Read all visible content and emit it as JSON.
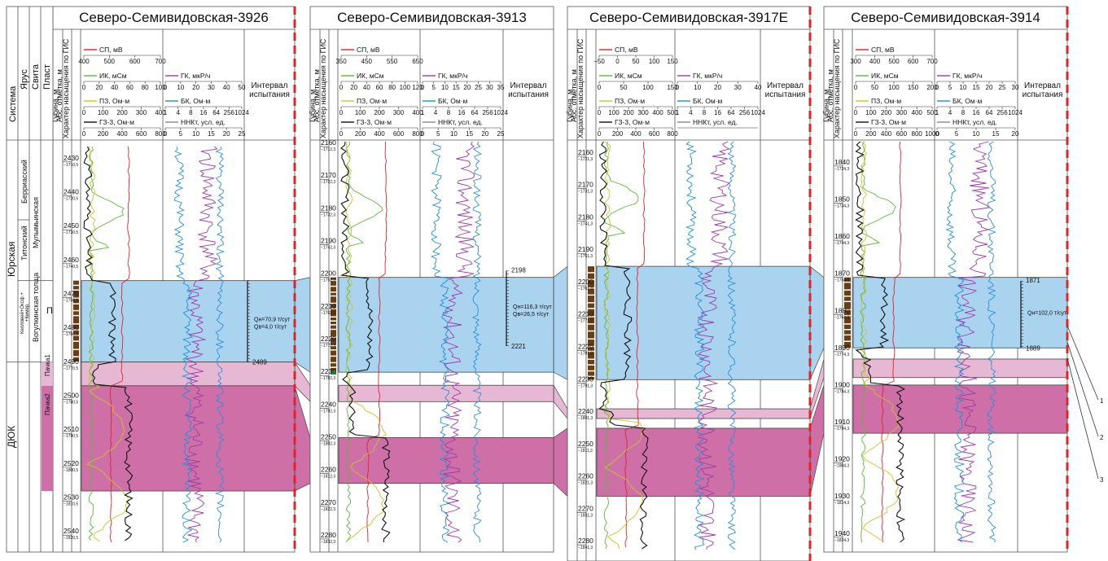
{
  "colors": {
    "sp": "#e0232b",
    "ik": "#5cb83a",
    "pz": "#c9c42a",
    "gz": "#111111",
    "gk": "#9b3ba6",
    "bk": "#1d8fd6",
    "nnkt": "#2a8fd8",
    "oil_interval": "#a9d3ef",
    "pachka1": "#e6b8d4",
    "pachka2": "#cf6fa8",
    "char_oil": "#6b3d12",
    "char_water": "#1fa64a",
    "boundary_dash": "#e0232b"
  },
  "common_headers": {
    "sistema": "Система",
    "yarus": "Ярус",
    "svita": "Свита",
    "plast": "Пласт",
    "depth_label_1": "Губина, м",
    "depth_label_2": "Абс. отметка, м",
    "char_label_1": "Характер насыщения по ГИС",
    "interval_label_1": "Интервал",
    "interval_label_2": "испытания",
    "curve_sp": "СП, мВ",
    "curve_ik": "ИК, мСм",
    "curve_pz": "ПЗ, Ом·м",
    "curve_gz": "ГЗ-3, Ом·м",
    "curve_gk": "ГК, мкР/ч",
    "curve_bk": "БК, Ом·м",
    "curve_nnkt": "ННКт, усл. ед."
  },
  "strat": {
    "sistema_upper": "Юрская",
    "sistema_lower": "ДЮК",
    "yarus_1": "Берриасский",
    "yarus_2": "Титонский",
    "yarus_3_line1": "Келловей+Оксф.+",
    "yarus_3_line2": "+Кимер.",
    "svita_1": "Мулымьинская",
    "svita_2": "Вогулкинская толща",
    "plast_p": "П",
    "pachka1": "Пачка1",
    "pachka2": "Пачка2"
  },
  "wells": [
    {
      "name": "Северо-Семивидовская-3926",
      "sp_ticks": [
        "400",
        "500",
        "600",
        "700"
      ],
      "ik_ticks": [
        "0",
        "20",
        "40",
        "60",
        "80",
        "100"
      ],
      "pz_ticks": [
        "0",
        "100",
        "200",
        "300",
        "400"
      ],
      "gz_ticks": [
        "0",
        "200",
        "400",
        "600",
        "800"
      ],
      "gk_ticks": [
        "0",
        "10",
        "20",
        "30",
        "40",
        "50"
      ],
      "bk_ticks": [
        "1",
        "4",
        "8",
        "16",
        "64",
        "256",
        "1024"
      ],
      "nnkt_ticks": [
        "0",
        "5",
        "10",
        "15",
        "20",
        "25"
      ],
      "depths": [
        {
          "d": "2430",
          "a": "−1710,5"
        },
        {
          "d": "2440",
          "a": "−1720,5"
        },
        {
          "d": "2450",
          "a": "−1730,5"
        },
        {
          "d": "2460",
          "a": "−1740,5"
        },
        {
          "d": "2470",
          "a": "−1750,5"
        },
        {
          "d": "2480",
          "a": "−1760,5"
        },
        {
          "d": "2490",
          "a": "−1770,5"
        },
        {
          "d": "2500",
          "a": "−1780,5"
        },
        {
          "d": "2510",
          "a": "−1790,5"
        },
        {
          "d": "2520",
          "a": "−1800,5"
        },
        {
          "d": "2530",
          "a": "−1810,5"
        },
        {
          "d": "2540",
          "a": "−1820,5"
        }
      ],
      "test_top": "",
      "test_bottom": "2489",
      "q_oil": "Qн=70,9 т/сут",
      "q_water": "Qв=4,0 т/сут"
    },
    {
      "name": "Северо-Семивидовская-3913",
      "sp_ticks": [
        "350",
        "450",
        "550",
        "650"
      ],
      "ik_ticks": [
        "0",
        "20",
        "40",
        "60",
        "80",
        "100",
        "120"
      ],
      "pz_ticks": [
        "0",
        "100",
        "200",
        "300",
        "400"
      ],
      "gz_ticks": [
        "0",
        "200",
        "400",
        "600",
        "800"
      ],
      "gk_ticks": [
        "0",
        "5",
        "10",
        "15",
        "20",
        "25",
        "30",
        "35"
      ],
      "bk_ticks": [
        "1",
        "4",
        "8",
        "16",
        "64",
        "256",
        "1024"
      ],
      "nnkt_ticks": [
        "0",
        "5",
        "10",
        "15",
        "20",
        "25"
      ],
      "depths": [
        {
          "d": "2160",
          "a": "−1712,3"
        },
        {
          "d": "2170",
          "a": "−1722,3"
        },
        {
          "d": "2180",
          "a": "−1732,3"
        },
        {
          "d": "2190",
          "a": "−1742,3"
        },
        {
          "d": "2200",
          "a": "−1752,3"
        },
        {
          "d": "2210",
          "a": "−1762,3"
        },
        {
          "d": "2220",
          "a": "−1772,3"
        },
        {
          "d": "2230",
          "a": "−1782,3"
        },
        {
          "d": "2240",
          "a": "−1792,3"
        },
        {
          "d": "2250",
          "a": "−1802,3"
        },
        {
          "d": "2260",
          "a": "−1812,3"
        },
        {
          "d": "2270",
          "a": "−1822,3"
        },
        {
          "d": "2280",
          "a": "−1832,3"
        }
      ],
      "test_top": "2198",
      "test_bottom": "2221",
      "q_oil": "Qн=116,3 т/сут",
      "q_water": "Qв=26,5 т/сут"
    },
    {
      "name": "Северо-Семивидовская-3917Е",
      "sp_ticks": [
        "−50",
        "0",
        "50",
        "100",
        "150"
      ],
      "ik_ticks": [
        "0",
        "50",
        "100",
        "150"
      ],
      "pz_ticks": [
        "0",
        "100",
        "200",
        "300",
        "400",
        "500"
      ],
      "gz_ticks": [
        "0",
        "200",
        "400",
        "600",
        "800"
      ],
      "gk_ticks": [
        "0",
        "10",
        "20",
        "30",
        "40"
      ],
      "bk_ticks": [
        "1",
        "4",
        "8",
        "16",
        "64",
        "256",
        "1024"
      ],
      "nnkt_ticks": [],
      "depths": [
        {
          "d": "2160",
          "a": "−1721,3"
        },
        {
          "d": "2170",
          "a": "−1731,3"
        },
        {
          "d": "2180",
          "a": "−1741,3"
        },
        {
          "d": "2190",
          "a": "−1751,3"
        },
        {
          "d": "2200",
          "a": "−1761,3"
        },
        {
          "d": "2210",
          "a": "−1771,3"
        },
        {
          "d": "2220",
          "a": "−1781,3"
        },
        {
          "d": "2230",
          "a": "−1791,3"
        },
        {
          "d": "2240",
          "a": "−1801,3"
        },
        {
          "d": "2250",
          "a": "−1811,3"
        },
        {
          "d": "2260",
          "a": "−1821,3"
        },
        {
          "d": "2270",
          "a": "−1831,3"
        },
        {
          "d": "2280",
          "a": "−1841,3"
        }
      ],
      "test_top": "",
      "test_bottom": "",
      "q_oil": "",
      "q_water": ""
    },
    {
      "name": "Северо-Семивидовская-3914",
      "sp_ticks": [
        "300",
        "400",
        "500",
        "600",
        "700"
      ],
      "ik_ticks": [
        "0",
        "50",
        "100",
        "150",
        "200"
      ],
      "pz_ticks": [
        "0",
        "100",
        "200",
        "300",
        "400",
        "500"
      ],
      "gz_ticks": [
        "0",
        "200",
        "400",
        "600",
        "800",
        "1000"
      ],
      "gk_ticks": [
        "0",
        "5",
        "10",
        "15",
        "20",
        "25",
        "30"
      ],
      "bk_ticks": [
        "1",
        "4",
        "8",
        "16",
        "64",
        "256",
        "1024"
      ],
      "nnkt_ticks": [
        "0",
        "5",
        "10",
        "15",
        "20"
      ],
      "depths": [
        {
          "d": "1840",
          "a": "−1724,3"
        },
        {
          "d": "1850",
          "a": "−1734,3"
        },
        {
          "d": "1860",
          "a": "−1744,3"
        },
        {
          "d": "1870",
          "a": "−1754,3"
        },
        {
          "d": "1880",
          "a": "−1764,3"
        },
        {
          "d": "1890",
          "a": "−1774,3"
        },
        {
          "d": "1900",
          "a": "−1784,3"
        },
        {
          "d": "1910",
          "a": "−1794,3"
        },
        {
          "d": "1920",
          "a": "−1804,3"
        },
        {
          "d": "1930",
          "a": "−1814,3"
        },
        {
          "d": "1940",
          "a": "−1824,3"
        }
      ],
      "test_top": "1871",
      "test_bottom": "1889",
      "q_oil": "Qн=102,0 т/сут",
      "q_water": ""
    }
  ],
  "right_labels": [
    "1",
    "2",
    "3"
  ]
}
